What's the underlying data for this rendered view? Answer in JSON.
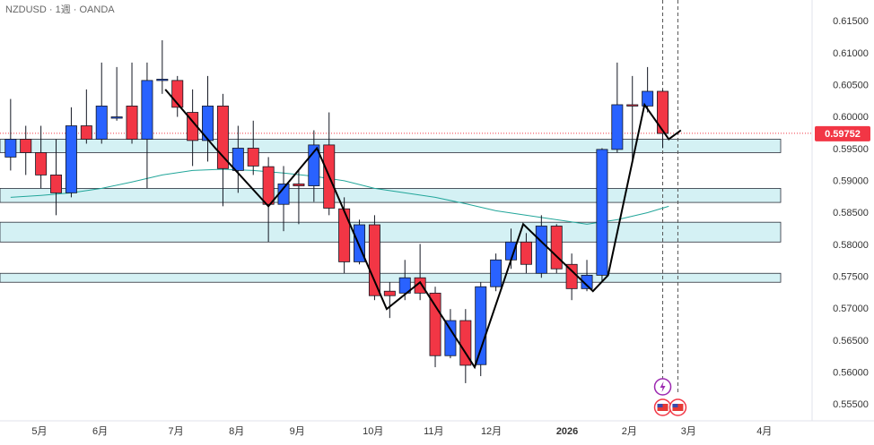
{
  "chart_data": {
    "type": "candlestick",
    "title": "NZDUSD · 1週 · OANDA",
    "up_color": "#2962ff",
    "down_color": "#f23645",
    "zone_color": "#d4f1f4",
    "ma_color": "#22a69a",
    "open": [
      0.5938,
      0.5966,
      0.5945,
      0.591,
      0.5882,
      0.5987,
      0.5966,
      0.6001,
      0.6018,
      0.5966,
      0.6058,
      0.6058,
      0.6008,
      0.5964,
      0.6018,
      0.5917,
      0.5952,
      0.5923,
      0.5864,
      0.5896,
      0.5893,
      0.5957,
      0.5857,
      0.5774,
      0.5832,
      0.5728,
      0.5725,
      0.5749,
      0.5725,
      0.5627,
      0.5682,
      0.5613,
      0.5735,
      0.5777,
      0.5805,
      0.5756,
      0.583,
      0.577,
      0.5732,
      0.5753,
      0.595,
      0.602,
      0.6018,
      0.6041
    ],
    "high": [
      0.6029,
      0.5987,
      0.5987,
      0.5966,
      0.6016,
      0.6044,
      0.6086,
      0.6079,
      0.6086,
      0.6086,
      0.6121,
      0.6065,
      0.6044,
      0.6065,
      0.6037,
      0.5987,
      0.5995,
      0.5938,
      0.5924,
      0.5917,
      0.598,
      0.6008,
      0.5875,
      0.584,
      0.5847,
      0.5742,
      0.5777,
      0.5802,
      0.5735,
      0.57,
      0.57,
      0.5742,
      0.5787,
      0.5826,
      0.5819,
      0.5847,
      0.5833,
      0.5787,
      0.5777,
      0.5952,
      0.6086,
      0.6065,
      0.6079,
      0.6044
    ],
    "low": [
      0.5917,
      0.591,
      0.5889,
      0.5847,
      0.5875,
      0.5959,
      0.5959,
      0.5995,
      0.5959,
      0.5889,
      0.6037,
      0.6001,
      0.5924,
      0.5931,
      0.5861,
      0.5882,
      0.591,
      0.5805,
      0.5822,
      0.5833,
      0.5868,
      0.5847,
      0.5756,
      0.577,
      0.5714,
      0.5686,
      0.5714,
      0.5714,
      0.5609,
      0.5623,
      0.5584,
      0.5595,
      0.5728,
      0.5763,
      0.5756,
      0.5749,
      0.5756,
      0.5714,
      0.5728,
      0.5742,
      0.5945,
      0.5931,
      0.6008,
      0.5952
    ],
    "close": [
      0.5966,
      0.5945,
      0.591,
      0.5882,
      0.5987,
      0.5966,
      0.6018,
      0.6001,
      0.5966,
      0.6058,
      0.606,
      0.6016,
      0.5964,
      0.6018,
      0.592,
      0.5952,
      0.5924,
      0.5864,
      0.5896,
      0.5893,
      0.5957,
      0.5858,
      0.5774,
      0.5832,
      0.5721,
      0.5721,
      0.5749,
      0.5725,
      0.5627,
      0.5682,
      0.5612,
      0.5735,
      0.5777,
      0.5805,
      0.577,
      0.583,
      0.5763,
      0.5732,
      0.5753,
      0.595,
      0.602,
      0.6018,
      0.6041,
      0.5975
    ],
    "zones": [
      [
        0.5945,
        0.5966
      ],
      [
        0.5867,
        0.5889
      ],
      [
        0.5805,
        0.5836
      ],
      [
        0.5742,
        0.5756
      ]
    ],
    "ma": {
      "x": [
        0,
        2,
        4,
        6,
        8,
        10,
        12,
        14,
        16,
        18,
        20,
        22,
        24,
        26,
        28,
        30,
        32,
        34,
        36,
        38,
        40,
        42,
        43.4
      ],
      "values": [
        0.5875,
        0.5878,
        0.5882,
        0.5889,
        0.5899,
        0.591,
        0.5917,
        0.5919,
        0.5917,
        0.5913,
        0.5908,
        0.5901,
        0.5889,
        0.5882,
        0.5875,
        0.5865,
        0.5854,
        0.5847,
        0.584,
        0.5833,
        0.584,
        0.5851,
        0.5861
      ]
    },
    "zigzag": {
      "x": [
        10.2,
        13.5,
        17,
        20.2,
        24.8,
        27,
        30.6,
        33.8,
        38.4,
        39.4,
        41.8,
        43.4,
        44.2
      ],
      "values": [
        0.6044,
        0.5952,
        0.5861,
        0.5952,
        0.57,
        0.5742,
        0.5609,
        0.5833,
        0.5728,
        0.5753,
        0.602,
        0.5966,
        0.598
      ]
    },
    "event_lines": [
      43,
      44
    ],
    "last_price": 0.59752,
    "xlim": [
      -0.7,
      52.85
    ],
    "ylim": [
      0.5525,
      0.6184
    ],
    "xticks": [
      {
        "value": 1.9,
        "label": "5月"
      },
      {
        "value": 5.9,
        "label": "6月"
      },
      {
        "value": 10.9,
        "label": "7月"
      },
      {
        "value": 14.9,
        "label": "8月"
      },
      {
        "value": 18.9,
        "label": "9月"
      },
      {
        "value": 23.9,
        "label": "10月"
      },
      {
        "value": 27.9,
        "label": "11月"
      },
      {
        "value": 31.7,
        "label": "12月"
      },
      {
        "value": 36.7,
        "label": "2026"
      },
      {
        "value": 40.8,
        "label": "2月"
      },
      {
        "value": 44.7,
        "label": "3月"
      },
      {
        "value": 49.7,
        "label": "4月"
      }
    ],
    "yticks": [
      {
        "value": 0.555,
        "label": "0.55500"
      },
      {
        "value": 0.56,
        "label": "0.56000"
      },
      {
        "value": 0.565,
        "label": "0.56500"
      },
      {
        "value": 0.57,
        "label": "0.57000"
      },
      {
        "value": 0.575,
        "label": "0.57500"
      },
      {
        "value": 0.58,
        "label": "0.58000"
      },
      {
        "value": 0.585,
        "label": "0.58500"
      },
      {
        "value": 0.59,
        "label": "0.59000"
      },
      {
        "value": 0.595,
        "label": "0.59500"
      },
      {
        "value": 0.6,
        "label": "0.60000"
      },
      {
        "value": 0.605,
        "label": "0.60500"
      },
      {
        "value": 0.61,
        "label": "0.61000"
      },
      {
        "value": 0.615,
        "label": "0.61500"
      }
    ]
  }
}
